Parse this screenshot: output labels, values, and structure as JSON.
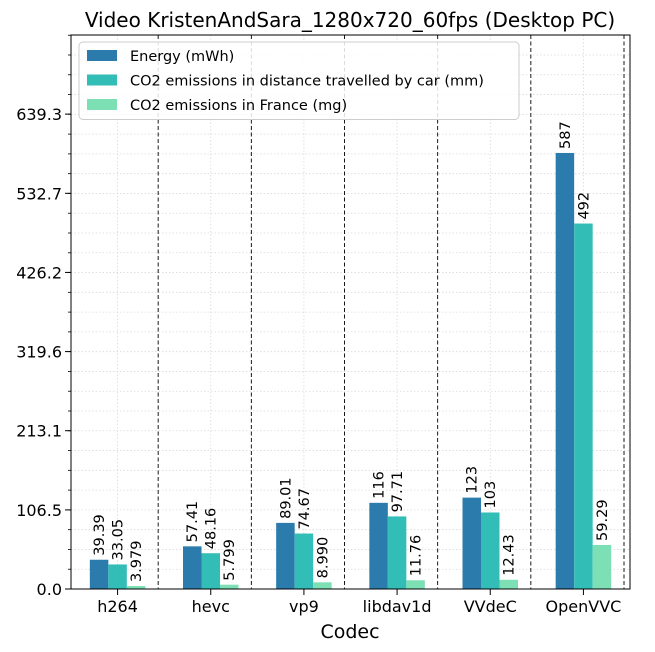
{
  "chart_data": {
    "type": "bar",
    "title": "Video KristenAndSara_1280x720_60fps (Desktop PC)",
    "xlabel": "Codec",
    "ylabel": "",
    "categories": [
      "h264",
      "hevc",
      "vp9",
      "libdav1d",
      "VVdeC",
      "OpenVVC"
    ],
    "series": [
      {
        "name": "Energy (mWh)",
        "color": "#2c7bad",
        "values": [
          39.39,
          57.41,
          89.01,
          116,
          123,
          587
        ],
        "labels": [
          "39.39",
          "57.41",
          "89.01",
          "116",
          "123",
          "587"
        ]
      },
      {
        "name": "CO2 emissions in distance travelled by car (mm)",
        "color": "#33bdb7",
        "values": [
          33.05,
          48.16,
          74.67,
          97.71,
          103,
          492
        ],
        "labels": [
          "33.05",
          "48.16",
          "74.67",
          "97.71",
          "103",
          "492"
        ]
      },
      {
        "name": "CO2 emissions in France (mg)",
        "color": "#7ddfb4",
        "values": [
          3.979,
          5.799,
          8.99,
          11.76,
          12.43,
          59.29
        ],
        "labels": [
          "3.979",
          "5.799",
          "8.990",
          "11.76",
          "12.43",
          "59.29"
        ]
      }
    ],
    "yticks": [
      0.0,
      106.5,
      213.1,
      319.6,
      426.2,
      532.7,
      639.3
    ],
    "ytick_labels": [
      "0.0",
      "106.5",
      "213.1",
      "319.6",
      "426.2",
      "532.7",
      "639.3"
    ],
    "ylim": [
      0,
      745.8
    ],
    "grid": true,
    "legend_position": "top-left"
  }
}
